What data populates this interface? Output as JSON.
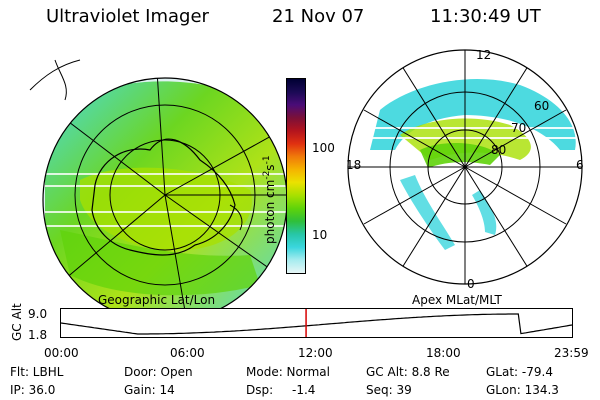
{
  "header": {
    "instrument": "Ultraviolet Imager",
    "date": "21 Nov 07",
    "time": "11:30:49 UT"
  },
  "left_panel": {
    "caption": "Geographic Lat/Lon"
  },
  "right_panel": {
    "caption": "Apex MLat/MLT",
    "mlt_labels": {
      "top": "12",
      "left": "18",
      "right": "6",
      "bottom": "0"
    },
    "lat_labels": [
      "60",
      "70",
      "80"
    ]
  },
  "colorbar": {
    "unit_prefix": "photon cm",
    "unit_exp1": "-2",
    "unit_mid": "s",
    "unit_exp2": "-1",
    "ticks": [
      "100",
      "10"
    ],
    "colors": [
      "#000033",
      "#1b0a55",
      "#4a0c78",
      "#7b1038",
      "#b3141e",
      "#e03011",
      "#f07a0a",
      "#f5b400",
      "#ebe100",
      "#a8e000",
      "#5fd30a",
      "#2fbf3a",
      "#27c6a7",
      "#3ad6dd",
      "#a6ecef",
      "#e6f6f6"
    ]
  },
  "timeline": {
    "ylabel": "GC Alt",
    "ytick_top": "9.0",
    "ytick_bottom": "1.8",
    "xticks": [
      "00:00",
      "06:00",
      "12:00",
      "18:00",
      "23:59"
    ],
    "current_time_hours": 11.51,
    "marker_color": "#d60000"
  },
  "info": {
    "flt": "Flt: LBHL",
    "ip": "IP: 36.0",
    "door": "Door: Open",
    "gain": "Gain: 14",
    "mode": "Mode: Normal",
    "dsp_label": "Dsp:",
    "dsp_value": "-1.4",
    "gc_alt": "GC Alt: 8.8 Re",
    "seq": "Seq: 39",
    "glat": "GLat: -79.4",
    "glon": "GLon: 134.3"
  }
}
